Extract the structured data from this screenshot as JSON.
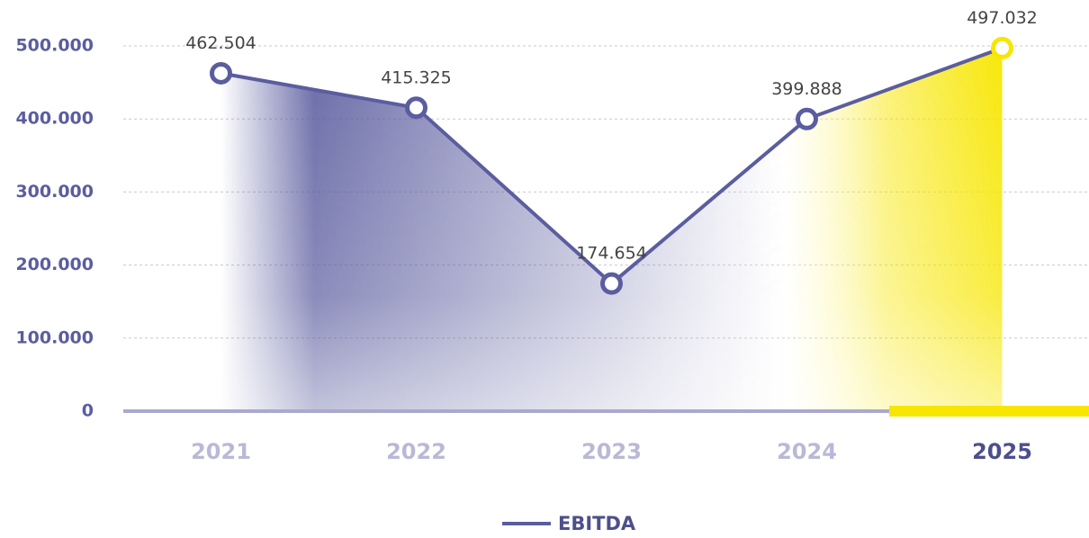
{
  "chart_data": {
    "type": "line",
    "categories": [
      "2021",
      "2022",
      "2023",
      "2024",
      "2025"
    ],
    "series": [
      {
        "name": "EBITDA",
        "color": "#5b5d9f",
        "values": [
          462504,
          415325,
          174654,
          399888,
          497032
        ],
        "value_labels": [
          "462.504",
          "415.325",
          "174.654",
          "399.888",
          "497.032"
        ]
      }
    ],
    "highlight_color": "#f7e600",
    "ylim": [
      0,
      500000
    ],
    "yticks": [
      0,
      {
        "value": 100000,
        "label": "100.000"
      },
      {
        "value": 200000,
        "label": "200.000"
      },
      {
        "value": 300000,
        "label": "300.000"
      },
      {
        "value": 400000,
        "label": "400.000"
      },
      {
        "value": 500000,
        "label": "500.000"
      }
    ],
    "grid": true
  }
}
